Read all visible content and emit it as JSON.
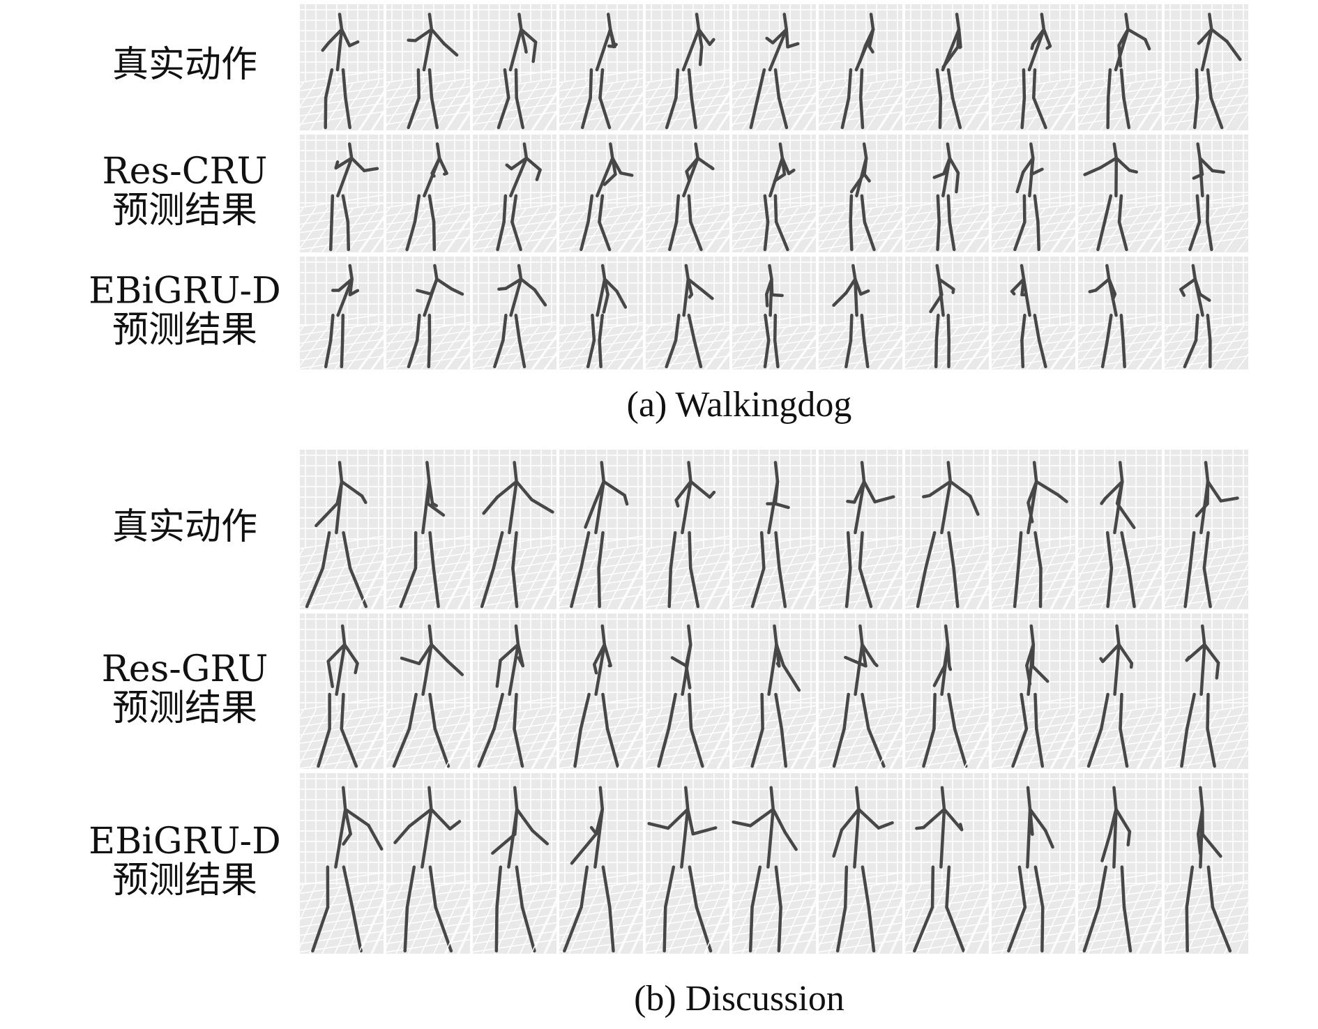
{
  "panels": [
    {
      "caption": "(a) Walkingdog",
      "rows": [
        {
          "label": [
            "真实动作"
          ]
        },
        {
          "label": [
            "Res-CRU",
            "预测结果"
          ]
        },
        {
          "label": [
            "EBiGRU-D",
            "预测结果"
          ]
        }
      ]
    },
    {
      "caption": "(b) Discussion",
      "rows": [
        {
          "label": [
            "真实动作"
          ]
        },
        {
          "label": [
            "Res-GRU",
            "预测结果"
          ]
        },
        {
          "label": [
            "EBiGRU-D",
            "预测结果"
          ]
        }
      ]
    }
  ]
}
